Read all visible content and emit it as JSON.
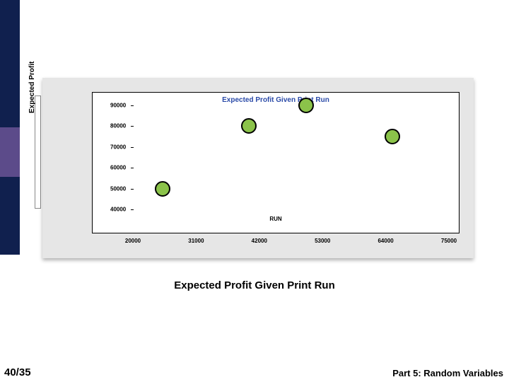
{
  "chart": {
    "type": "scatter",
    "title": "Expected Profit Given Print Run",
    "title_color": "#2a4aa8",
    "xlabel": "RUN",
    "ylabel": "Expected Profit",
    "ylim": [
      40000,
      90000
    ],
    "xlim": [
      20000,
      75000
    ],
    "yticks": [
      40000,
      50000,
      60000,
      70000,
      80000,
      90000
    ],
    "ytick_labels": [
      "40000",
      "50000",
      "60000",
      "70000",
      "80000",
      "90000"
    ],
    "xticks": [
      20000,
      31000,
      42000,
      53000,
      64000,
      75000
    ],
    "xtick_labels": [
      "20000",
      "31000",
      "42000",
      "53000",
      "64000",
      "75000"
    ],
    "background_color": "#e6e6e6",
    "plot_bg": "#ffffff",
    "marker_fill": "#8bc34a",
    "marker_stroke": "#000000",
    "marker_radius": 11,
    "points": [
      {
        "x": 25000,
        "y": 50000
      },
      {
        "x": 40000,
        "y": 80000
      },
      {
        "x": 50000,
        "y": 90000
      },
      {
        "x": 65000,
        "y": 75000
      }
    ]
  },
  "caption": "Expected Profit Given Print Run",
  "footer": {
    "page": "40/35",
    "part": "Part 5: Random Variables"
  },
  "sidebar": {
    "navy": "#10204e",
    "purple": "#5c4b8a"
  }
}
